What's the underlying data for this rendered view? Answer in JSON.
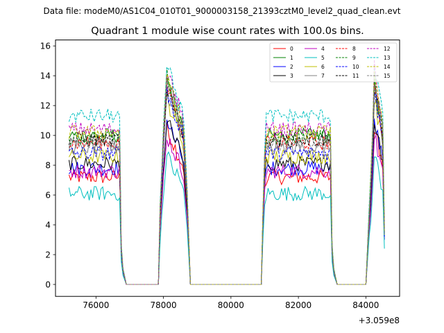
{
  "chart_data": {
    "type": "line",
    "suptitle": "Data file: modeM0/AS1C04_010T01_9000003158_21393cztM0_level2_quad_clean.evt",
    "title": "Quadrant 1 module wise count rates with 100.0s bins.",
    "xlabel": "",
    "ylabel": "",
    "x_offset_label": "+3.059e8",
    "xlim": [
      74800,
      85000
    ],
    "ylim": [
      -0.8,
      16.4
    ],
    "x_ticks": [
      76000,
      78000,
      80000,
      82000,
      84000
    ],
    "x_tick_labels": [
      "76000",
      "78000",
      "80000",
      "82000",
      "84000"
    ],
    "y_ticks": [
      0,
      2,
      4,
      6,
      8,
      10,
      12,
      14,
      16
    ],
    "y_tick_labels": [
      "0",
      "2",
      "4",
      "6",
      "8",
      "10",
      "12",
      "14",
      "16"
    ],
    "grid": false,
    "legend_position": "top-right",
    "segments": [
      {
        "start": 75200,
        "end": 76700,
        "kind": "plateau"
      },
      {
        "start": 76750,
        "end": 76850,
        "kind": "decay"
      },
      {
        "start": 76900,
        "end": 77850,
        "kind": "zero"
      },
      {
        "start": 77900,
        "end": 78000,
        "kind": "rise"
      },
      {
        "start": 78100,
        "end": 78600,
        "kind": "peak"
      },
      {
        "start": 78700,
        "end": 78700,
        "kind": "decay"
      },
      {
        "start": 78800,
        "end": 80900,
        "kind": "zero"
      },
      {
        "start": 80950,
        "end": 81000,
        "kind": "rise"
      },
      {
        "start": 81050,
        "end": 82950,
        "kind": "plateau"
      },
      {
        "start": 83000,
        "end": 83100,
        "kind": "decay"
      },
      {
        "start": 83150,
        "end": 84000,
        "kind": "zero"
      },
      {
        "start": 84100,
        "end": 84200,
        "kind": "rise"
      },
      {
        "start": 84250,
        "end": 84500,
        "kind": "peak"
      },
      {
        "start": 84550,
        "end": 84550,
        "kind": "end"
      }
    ],
    "series": [
      {
        "name": "0",
        "color": "#ff0000",
        "dash": "solid",
        "plateau": 7.2,
        "peak": 10.5,
        "end": 3.5
      },
      {
        "name": "1",
        "color": "#008000",
        "dash": "solid",
        "plateau": 10.0,
        "peak": 13.5,
        "end": 3.4
      },
      {
        "name": "2",
        "color": "#0000ff",
        "dash": "solid",
        "plateau": 7.8,
        "peak": 11.0,
        "end": 3.0
      },
      {
        "name": "3",
        "color": "#000000",
        "dash": "solid",
        "plateau": 8.1,
        "peak": 11.0,
        "end": 3.8
      },
      {
        "name": "4",
        "color": "#bf00bf",
        "dash": "solid",
        "plateau": 7.6,
        "peak": 10.0,
        "end": 3.1
      },
      {
        "name": "5",
        "color": "#00bfbf",
        "dash": "solid",
        "plateau": 6.1,
        "peak": 8.6,
        "end": 2.4
      },
      {
        "name": "6",
        "color": "#bfbf00",
        "dash": "solid",
        "plateau": 8.6,
        "peak": 12.5,
        "end": 3.3
      },
      {
        "name": "7",
        "color": "#808080",
        "dash": "solid",
        "plateau": 9.2,
        "peak": 13.0,
        "end": 3.6
      },
      {
        "name": "8",
        "color": "#ff0000",
        "dash": "dashed",
        "plateau": 9.5,
        "peak": 13.5,
        "end": 3.7
      },
      {
        "name": "9",
        "color": "#008000",
        "dash": "dashed",
        "plateau": 9.9,
        "peak": 14.0,
        "end": 3.9
      },
      {
        "name": "10",
        "color": "#0000ff",
        "dash": "dashed",
        "plateau": 8.8,
        "peak": 13.0,
        "end": 3.2
      },
      {
        "name": "11",
        "color": "#000000",
        "dash": "dashed",
        "plateau": 9.7,
        "peak": 13.5,
        "end": 3.5
      },
      {
        "name": "12",
        "color": "#bf00bf",
        "dash": "dashed",
        "plateau": 10.4,
        "peak": 14.5,
        "end": 3.8
      },
      {
        "name": "13",
        "color": "#00bfbf",
        "dash": "dashed",
        "plateau": 11.3,
        "peak": 14.8,
        "end": 4.0
      },
      {
        "name": "14",
        "color": "#bfbf00",
        "dash": "dashed",
        "plateau": 10.2,
        "peak": 14.0,
        "end": 3.6
      },
      {
        "name": "15",
        "color": "#808080",
        "dash": "dashed",
        "plateau": 9.4,
        "peak": 13.8,
        "end": 3.4
      }
    ]
  }
}
